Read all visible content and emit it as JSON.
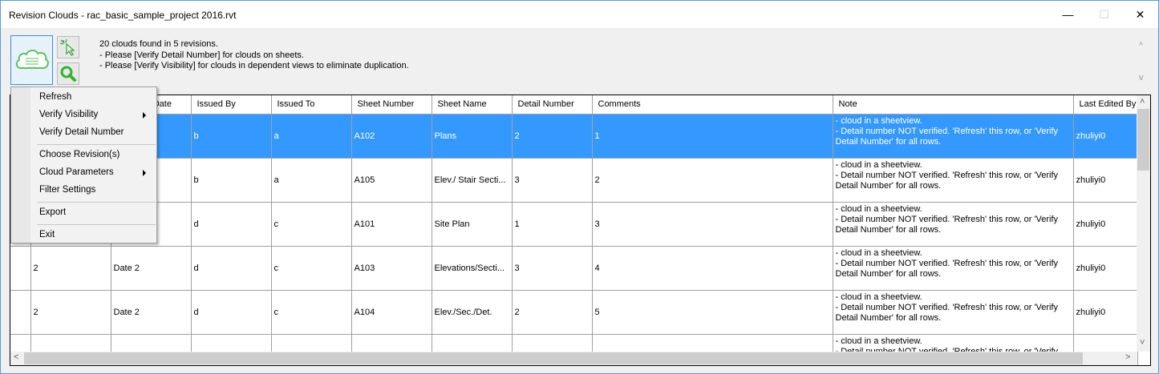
{
  "window": {
    "title": "Revision Clouds - rac_basic_sample_project 2016.rvt",
    "minimize": "—",
    "maximize": "☐",
    "close": "✕"
  },
  "toolbar": {
    "main_icon": "cloud-icon",
    "select_icon": "cursor-select-icon",
    "zoom_icon": "magnifier-icon"
  },
  "messages": [
    "20 clouds found in 5 revisions.",
    "- Please [Verify Detail Number] for clouds on sheets.",
    "- Please [Verify Visibility] for clouds in dependent views to eliminate duplication."
  ],
  "columns": [
    "",
    "Revision Date",
    "Issued By",
    "Issued To",
    "Sheet Number",
    "Sheet Name",
    "Detail Number",
    "Comments",
    "Note",
    "Last Edited By"
  ],
  "rows": [
    {
      "c0": "",
      "c1": "",
      "issued_by": "b",
      "issued_to": "a",
      "sheet_number": "A102",
      "sheet_name": "Plans",
      "detail": "2",
      "comments": "1",
      "note": "- cloud in a sheetview.\n- Detail number NOT verified. 'Refresh' this row, or 'Verify Detail Number' for all rows.",
      "edited_by": "zhuliyi0",
      "selected": true
    },
    {
      "c0": "",
      "c1": "",
      "issued_by": "b",
      "issued_to": "a",
      "sheet_number": "A105",
      "sheet_name": "Elev./ Stair Secti...",
      "detail": "3",
      "comments": "2",
      "note": "- cloud in a sheetview.\n- Detail number NOT verified. 'Refresh' this row, or 'Verify Detail Number' for all rows.",
      "edited_by": "zhuliyi0"
    },
    {
      "c0": "",
      "c1": "",
      "issued_by": "d",
      "issued_to": "c",
      "sheet_number": "A101",
      "sheet_name": "Site Plan",
      "detail": "1",
      "comments": "3",
      "note": "- cloud in a sheetview.\n- Detail number NOT verified. 'Refresh' this row, or 'Verify Detail Number' for all rows.",
      "edited_by": "zhuliyi0"
    },
    {
      "c0": "2",
      "c1": "Date 2",
      "issued_by": "d",
      "issued_to": "c",
      "sheet_number": "A103",
      "sheet_name": "Elevations/Secti...",
      "detail": "3",
      "comments": "4",
      "note": "- cloud in a sheetview.\n- Detail number NOT verified. 'Refresh' this row, or 'Verify Detail Number' for all rows.",
      "edited_by": "zhuliyi0"
    },
    {
      "c0": "2",
      "c1": "Date 2",
      "issued_by": "d",
      "issued_to": "c",
      "sheet_number": "A104",
      "sheet_name": "Elev./Sec./Det.",
      "detail": "2",
      "comments": "5",
      "note": "- cloud in a sheetview.\n- Detail number NOT verified. 'Refresh' this row, or 'Verify Detail Number' for all rows.",
      "edited_by": "zhuliyi0"
    },
    {
      "c0": "",
      "c1": "",
      "issued_by": "",
      "issued_to": "",
      "sheet_number": "",
      "sheet_name": "",
      "detail": "",
      "comments": "",
      "note": "- cloud in a sheetview.\n- Detail number NOT verified. 'Refresh' this row, or 'Verify",
      "edited_by": ""
    }
  ],
  "menu": {
    "refresh": "Refresh",
    "verify_visibility": "Verify Visibility",
    "verify_detail": "Verify Detail Number",
    "choose_revisions": "Choose Revision(s)",
    "cloud_parameters": "Cloud Parameters",
    "filter_settings": "Filter Settings",
    "export": "Export",
    "exit": "Exit"
  },
  "colors": {
    "selection": "#3399ff",
    "accent_border": "#3a8de0"
  }
}
